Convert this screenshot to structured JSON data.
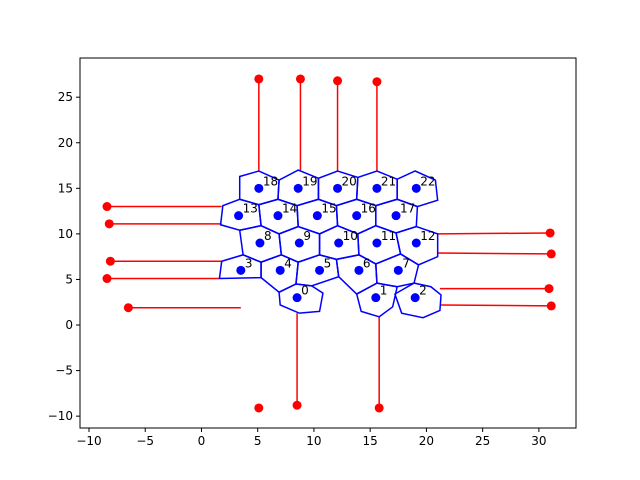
{
  "chart_data": {
    "type": "scatter",
    "title": "",
    "xlabel": "",
    "ylabel": "",
    "xlim": [
      -10.8,
      33.3
    ],
    "ylim": [
      -11.3,
      29.3
    ],
    "xticks": [
      -10,
      -5,
      0,
      5,
      10,
      15,
      20,
      25,
      30
    ],
    "yticks": [
      -10,
      -5,
      0,
      5,
      10,
      15,
      20,
      25
    ],
    "grid": false,
    "legend": "none",
    "colors": {
      "cells": "#0000ff",
      "points": "#0000ff",
      "connections": "#ff0000",
      "axes": "#000000"
    },
    "points": [
      {
        "label": "0",
        "x": 8.5,
        "y": 3.0
      },
      {
        "label": "1",
        "x": 15.5,
        "y": 3.0
      },
      {
        "label": "2",
        "x": 19.0,
        "y": 3.0
      },
      {
        "label": "3",
        "x": 3.5,
        "y": 6.0
      },
      {
        "label": "4",
        "x": 7.0,
        "y": 6.0
      },
      {
        "label": "5",
        "x": 10.5,
        "y": 6.0
      },
      {
        "label": "6",
        "x": 14.0,
        "y": 6.0
      },
      {
        "label": "7",
        "x": 17.5,
        "y": 6.0
      },
      {
        "label": "8",
        "x": 5.2,
        "y": 9.0
      },
      {
        "label": "9",
        "x": 8.7,
        "y": 9.0
      },
      {
        "label": "10",
        "x": 12.2,
        "y": 9.0
      },
      {
        "label": "11",
        "x": 15.6,
        "y": 9.0
      },
      {
        "label": "12",
        "x": 19.1,
        "y": 9.0
      },
      {
        "label": "13",
        "x": 3.3,
        "y": 12.0
      },
      {
        "label": "14",
        "x": 6.8,
        "y": 12.0
      },
      {
        "label": "15",
        "x": 10.3,
        "y": 12.0
      },
      {
        "label": "16",
        "x": 13.8,
        "y": 12.0
      },
      {
        "label": "17",
        "x": 17.3,
        "y": 12.0
      },
      {
        "label": "18",
        "x": 5.1,
        "y": 15.0
      },
      {
        "label": "19",
        "x": 8.6,
        "y": 15.0
      },
      {
        "label": "20",
        "x": 12.1,
        "y": 15.0
      },
      {
        "label": "21",
        "x": 15.6,
        "y": 15.0
      },
      {
        "label": "22",
        "x": 19.1,
        "y": 15.0
      }
    ],
    "cells": [
      [
        [
          10.5,
          1.5
        ],
        [
          8.7,
          1.3
        ],
        [
          7.0,
          2.2
        ],
        [
          6.9,
          3.6
        ],
        [
          8.4,
          4.5
        ],
        [
          9.8,
          4.3
        ],
        [
          10.8,
          3.5
        ]
      ],
      [
        [
          17.0,
          2.0
        ],
        [
          15.8,
          0.9
        ],
        [
          14.2,
          1.5
        ],
        [
          13.8,
          3.4
        ],
        [
          15.6,
          4.6
        ],
        [
          17.4,
          4.2
        ]
      ],
      [
        [
          21.2,
          1.6
        ],
        [
          19.7,
          0.8
        ],
        [
          17.8,
          1.3
        ],
        [
          17.2,
          3.4
        ],
        [
          18.9,
          4.6
        ],
        [
          20.4,
          4.2
        ],
        [
          21.3,
          3.3
        ]
      ],
      [
        [
          1.6,
          5.1
        ],
        [
          5.3,
          5.2
        ],
        [
          5.3,
          6.9
        ],
        [
          3.7,
          7.7
        ],
        [
          1.8,
          7.0
        ]
      ],
      [
        [
          5.3,
          5.2
        ],
        [
          6.9,
          3.6
        ],
        [
          8.4,
          4.5
        ],
        [
          8.6,
          6.9
        ],
        [
          7.1,
          7.7
        ],
        [
          5.3,
          6.9
        ]
      ],
      [
        [
          8.4,
          4.5
        ],
        [
          9.8,
          4.3
        ],
        [
          12.2,
          5.3
        ],
        [
          12.0,
          7.2
        ],
        [
          10.5,
          7.7
        ],
        [
          8.6,
          6.9
        ]
      ],
      [
        [
          12.2,
          5.3
        ],
        [
          13.8,
          3.4
        ],
        [
          15.6,
          4.6
        ],
        [
          15.5,
          6.7
        ],
        [
          14.0,
          7.7
        ],
        [
          12.0,
          7.2
        ]
      ],
      [
        [
          15.6,
          4.6
        ],
        [
          17.4,
          4.2
        ],
        [
          18.9,
          4.6
        ],
        [
          19.3,
          6.6
        ],
        [
          17.7,
          7.8
        ],
        [
          15.5,
          6.7
        ]
      ],
      [
        [
          3.7,
          7.7
        ],
        [
          5.3,
          6.9
        ],
        [
          7.1,
          7.7
        ],
        [
          6.9,
          10.0
        ],
        [
          5.3,
          10.9
        ],
        [
          3.4,
          10.4
        ]
      ],
      [
        [
          7.1,
          7.7
        ],
        [
          8.6,
          6.9
        ],
        [
          10.5,
          7.7
        ],
        [
          10.5,
          10.0
        ],
        [
          8.6,
          10.8
        ],
        [
          6.9,
          10.0
        ]
      ],
      [
        [
          10.5,
          7.7
        ],
        [
          12.0,
          7.2
        ],
        [
          14.0,
          7.7
        ],
        [
          13.9,
          10.0
        ],
        [
          12.1,
          10.9
        ],
        [
          10.5,
          10.0
        ]
      ],
      [
        [
          14.0,
          7.7
        ],
        [
          15.5,
          6.7
        ],
        [
          17.7,
          7.8
        ],
        [
          17.3,
          10.1
        ],
        [
          15.5,
          10.9
        ],
        [
          13.9,
          10.0
        ]
      ],
      [
        [
          17.7,
          7.8
        ],
        [
          19.3,
          6.6
        ],
        [
          21.0,
          7.5
        ],
        [
          21.0,
          10.0
        ],
        [
          19.1,
          10.8
        ],
        [
          17.3,
          10.1
        ]
      ],
      [
        [
          1.7,
          11.0
        ],
        [
          1.9,
          13.1
        ],
        [
          3.4,
          13.8
        ],
        [
          5.1,
          13.2
        ],
        [
          5.3,
          10.9
        ],
        [
          3.4,
          10.4
        ]
      ],
      [
        [
          5.3,
          10.9
        ],
        [
          6.9,
          10.0
        ],
        [
          8.6,
          10.8
        ],
        [
          8.5,
          13.1
        ],
        [
          6.8,
          13.8
        ],
        [
          5.1,
          13.2
        ]
      ],
      [
        [
          8.6,
          10.8
        ],
        [
          10.5,
          10.0
        ],
        [
          12.1,
          10.9
        ],
        [
          12.0,
          13.1
        ],
        [
          10.4,
          13.8
        ],
        [
          8.5,
          13.1
        ]
      ],
      [
        [
          12.1,
          10.9
        ],
        [
          13.9,
          10.0
        ],
        [
          15.5,
          10.9
        ],
        [
          15.5,
          13.1
        ],
        [
          13.8,
          13.8
        ],
        [
          12.0,
          13.1
        ]
      ],
      [
        [
          15.5,
          10.9
        ],
        [
          17.3,
          10.1
        ],
        [
          19.1,
          10.8
        ],
        [
          19.2,
          13.0
        ],
        [
          17.4,
          13.8
        ],
        [
          15.5,
          13.1
        ]
      ],
      [
        [
          3.4,
          13.8
        ],
        [
          5.1,
          13.2
        ],
        [
          6.8,
          13.8
        ],
        [
          6.9,
          15.9
        ],
        [
          5.1,
          16.9
        ],
        [
          3.4,
          16.3
        ]
      ],
      [
        [
          6.8,
          13.8
        ],
        [
          8.5,
          13.1
        ],
        [
          10.4,
          13.8
        ],
        [
          10.4,
          16.1
        ],
        [
          8.6,
          17.0
        ],
        [
          6.9,
          15.9
        ]
      ],
      [
        [
          10.4,
          13.8
        ],
        [
          12.0,
          13.1
        ],
        [
          13.8,
          13.8
        ],
        [
          13.9,
          16.2
        ],
        [
          12.1,
          16.9
        ],
        [
          10.4,
          16.1
        ]
      ],
      [
        [
          13.8,
          13.8
        ],
        [
          15.5,
          13.1
        ],
        [
          17.4,
          13.8
        ],
        [
          17.4,
          16.0
        ],
        [
          15.6,
          16.9
        ],
        [
          13.9,
          16.2
        ]
      ],
      [
        [
          17.4,
          13.8
        ],
        [
          19.2,
          13.0
        ],
        [
          21.0,
          13.7
        ],
        [
          20.8,
          15.9
        ],
        [
          19.0,
          16.9
        ],
        [
          17.4,
          16.0
        ]
      ]
    ],
    "connections": [
      {
        "from": [
          5.1,
          16.9
        ],
        "to": [
          5.1,
          27.0
        ]
      },
      {
        "from": [
          8.8,
          16.9
        ],
        "to": [
          8.8,
          27.0
        ]
      },
      {
        "from": [
          12.1,
          16.9
        ],
        "to": [
          12.1,
          26.8
        ]
      },
      {
        "from": [
          15.6,
          16.9
        ],
        "to": [
          15.6,
          26.7
        ]
      },
      {
        "from": [
          1.8,
          13.0
        ],
        "to": [
          -8.4,
          13.0
        ]
      },
      {
        "from": [
          1.8,
          11.1
        ],
        "to": [
          -8.2,
          11.1
        ]
      },
      {
        "from": [
          1.8,
          7.0
        ],
        "to": [
          -8.1,
          7.0
        ]
      },
      {
        "from": [
          1.6,
          5.1
        ],
        "to": [
          -8.4,
          5.1
        ]
      },
      {
        "from": [
          3.5,
          1.9
        ],
        "to": [
          -6.5,
          1.9
        ]
      },
      {
        "from": [
          21.0,
          10.0
        ],
        "to": [
          31.0,
          10.1
        ]
      },
      {
        "from": [
          21.0,
          7.9
        ],
        "to": [
          31.1,
          7.8
        ]
      },
      {
        "from": [
          21.2,
          4.0
        ],
        "to": [
          30.9,
          4.0
        ]
      },
      {
        "from": [
          21.3,
          2.2
        ],
        "to": [
          31.1,
          2.1
        ]
      },
      {
        "from": [
          8.5,
          1.3
        ],
        "to": [
          8.5,
          -8.8
        ]
      },
      {
        "from": [
          15.8,
          1.0
        ],
        "to": [
          15.8,
          -9.1
        ]
      },
      {
        "from": [
          5.1,
          -9.1
        ],
        "to": [
          5.1,
          -9.1
        ]
      }
    ]
  }
}
